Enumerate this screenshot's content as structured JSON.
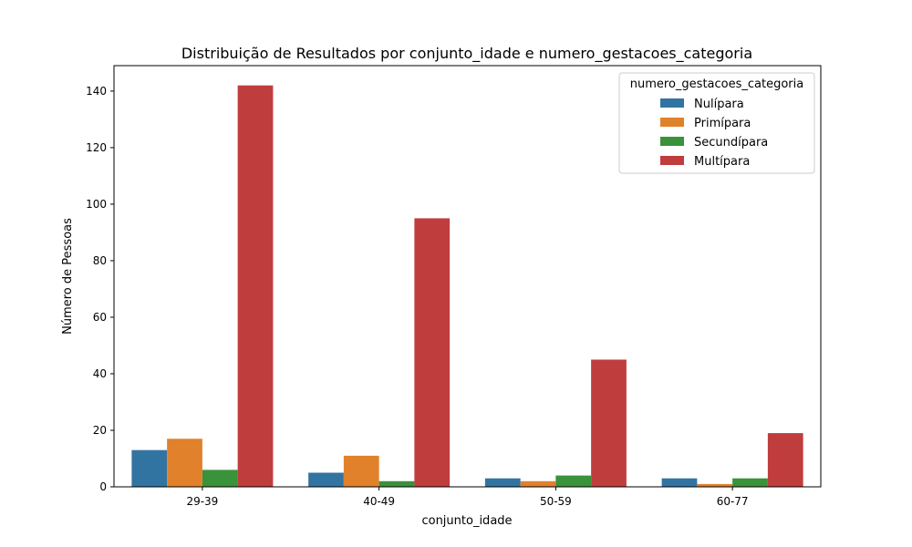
{
  "chart_data": {
    "type": "bar",
    "title": "Distribuição de Resultados por conjunto_idade e numero_gestacoes_categoria",
    "xlabel": "conjunto_idade",
    "ylabel": "Número de Pessoas",
    "categories": [
      "29-39",
      "40-49",
      "50-59",
      "60-77"
    ],
    "ylim": [
      0,
      149
    ],
    "yticks": [
      0,
      20,
      40,
      60,
      80,
      100,
      120,
      140
    ],
    "grid": false,
    "legend": {
      "title": "numero_gestacoes_categoria",
      "placement": "top-right"
    },
    "series": [
      {
        "name": "Nulípara",
        "color": "#3274a1",
        "values": [
          13,
          5,
          3,
          3
        ]
      },
      {
        "name": "Primípara",
        "color": "#e1812c",
        "values": [
          17,
          11,
          2,
          1
        ]
      },
      {
        "name": "Secundípara",
        "color": "#3a923a",
        "values": [
          6,
          2,
          4,
          3
        ]
      },
      {
        "name": "Multípara",
        "color": "#c03d3e",
        "values": [
          142,
          95,
          45,
          19
        ]
      }
    ]
  }
}
